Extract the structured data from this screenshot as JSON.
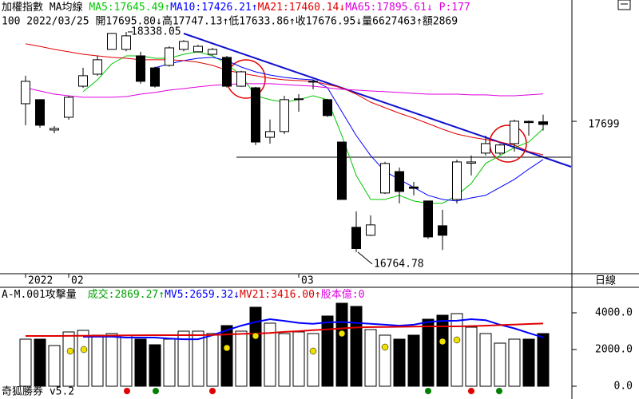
{
  "chart_data": [
    {
      "type": "candlestick",
      "title": "加權指數 MA均線",
      "subtitle": "100 2022/03/25 開17695.80↓高17747.13↑低17633.86↑收17676.95↓量6627463↑額2869",
      "extra_label": "P:177",
      "categories": [
        "2022",
        null,
        null,
        "02",
        null,
        null,
        null,
        null,
        null,
        null,
        null,
        null,
        null,
        null,
        null,
        null,
        null,
        null,
        null,
        "03",
        null,
        null,
        null,
        null,
        null,
        null,
        null,
        null,
        null,
        null,
        null,
        null,
        null,
        null,
        null,
        null,
        null
      ],
      "open": [
        17825,
        17854,
        17637,
        17728,
        17950,
        18036,
        18213,
        18213,
        18167,
        18081,
        18099,
        18213,
        18196,
        18178,
        18156,
        17950,
        17939,
        17585,
        17626,
        17855,
        17980,
        17854,
        17551,
        16942,
        16885,
        17187,
        17340,
        17230,
        17130,
        16953,
        17141,
        17400,
        17472,
        17472,
        17540,
        17699,
        17695.8
      ],
      "high": [
        18025,
        17854,
        17665,
        17882,
        18082,
        18167,
        18330,
        18338.05,
        18196,
        18090,
        18235,
        18280,
        18245,
        18224,
        18167,
        18060,
        17945,
        17712,
        17882,
        17893,
        17996,
        17860,
        17551,
        17056,
        17027,
        17410,
        17369,
        17266,
        17130,
        17067,
        17426,
        17455,
        17597,
        17540,
        17711,
        17705,
        17747.13
      ],
      "low": [
        17671,
        17654,
        17614,
        17711,
        17939,
        18025,
        18213,
        18200,
        17968,
        17940,
        18090,
        18200,
        18190,
        18170,
        17940,
        17945,
        17529,
        17540,
        17608,
        17768,
        17928,
        17730,
        17141,
        16764.78,
        16879,
        17180,
        17113,
        17170,
        16860,
        16780,
        17113,
        17312,
        17455,
        17460,
        17483,
        17597,
        17633.86
      ],
      "close": [
        17985,
        17671,
        17648,
        17871,
        18025,
        18139,
        18327,
        18310,
        17985,
        17950,
        18224,
        18270,
        18235,
        18213,
        17950,
        18053,
        17551,
        17626,
        17854,
        17860,
        17985,
        17740,
        17141,
        16790,
        16959,
        17398,
        17198,
        17220,
        16873,
        16885,
        17409,
        17409,
        17540,
        17530,
        17700,
        17690,
        17676.95
      ],
      "series": [
        {
          "name": "MA5:17645.49↑",
          "color": "#00c800",
          "values": [
            null,
            null,
            null,
            null,
            17911,
            17996,
            18110,
            18167,
            18167,
            18150,
            18150,
            18178,
            18196,
            18167,
            18110,
            18025,
            17882,
            17854,
            17836,
            17854,
            17882,
            17854,
            17597,
            17312,
            17141,
            17141,
            17170,
            17130,
            17113,
            17113,
            17170,
            17255,
            17398,
            17455,
            17512,
            17551,
            17645.49
          ]
        },
        {
          "name": "MA10:17426.21↑",
          "color": "#0000ff",
          "values": [
            null,
            null,
            null,
            null,
            null,
            null,
            null,
            null,
            null,
            18082,
            18110,
            18133,
            18150,
            18156,
            18133,
            18087,
            18053,
            18030,
            18013,
            18002,
            17996,
            17939,
            17768,
            17597,
            17455,
            17341,
            17284,
            17227,
            17170,
            17141,
            17130,
            17152,
            17170,
            17227,
            17284,
            17358,
            17426.21
          ]
        },
        {
          "name": "MA21:17460.14↓",
          "color": "#e00000",
          "values": [
            18253,
            18235,
            18213,
            18196,
            18178,
            18167,
            18156,
            18150,
            18139,
            18139,
            18139,
            18133,
            18121,
            18099,
            18064,
            18042,
            18025,
            18007,
            17996,
            17990,
            17985,
            17962,
            17939,
            17893,
            17836,
            17796,
            17757,
            17722,
            17683,
            17643,
            17608,
            17586,
            17569,
            17551,
            17529,
            17483,
            17460.14
          ]
        },
        {
          "name": "MA65:17895.61↓",
          "color": "#e000e0",
          "values": [
            17939,
            17916,
            17893,
            17882,
            17871,
            17871,
            17871,
            17876,
            17893,
            17905,
            17922,
            17933,
            17945,
            17956,
            17962,
            17968,
            17968,
            17968,
            17962,
            17956,
            17950,
            17939,
            17928,
            17922,
            17916,
            17911,
            17905,
            17899,
            17893,
            17893,
            17893,
            17888,
            17888,
            17882,
            17882,
            17888,
            17895.61
          ]
        }
      ],
      "ylim": [
        16616,
        18566
      ],
      "yticks": [
        17699
      ]
    },
    {
      "type": "bar",
      "title": "A-M.001攻擊量",
      "volume_label": "成交:2869.27↑",
      "volume_label_color": "#00a000",
      "extra_label": "股本億:0",
      "values": [
        2565,
        2565,
        2217,
        2957,
        3043,
        2783,
        2870,
        2783,
        2565,
        2261,
        2565,
        3000,
        3000,
        2870,
        3304,
        3000,
        4304,
        3435,
        2870,
        2957,
        2870,
        3826,
        4522,
        4348,
        3087,
        2783,
        2565,
        2783,
        3652,
        3870,
        3957,
        3217,
        2870,
        2348,
        2565,
        2565,
        2869.27
      ],
      "series": [
        {
          "name": "MV5:2659.32↓",
          "color": "#0000ff",
          "values": [
            null,
            null,
            null,
            null,
            2696,
            2700,
            2700,
            2650,
            2650,
            2650,
            2600,
            2560,
            2560,
            2780,
            3050,
            3300,
            3500,
            3650,
            3560,
            3450,
            3400,
            3480,
            3500,
            3450,
            3400,
            3350,
            3300,
            3350,
            3500,
            3560,
            3570,
            3650,
            3600,
            3350,
            3150,
            2900,
            2659.32
          ]
        },
        {
          "name": "MV21:3416.00↑",
          "color": "#e00000",
          "values": [
            2739,
            2739,
            2739,
            2745,
            2750,
            2755,
            2760,
            2770,
            2780,
            2783,
            2783,
            2783,
            2783,
            2790,
            2820,
            2850,
            2870,
            2900,
            2960,
            3000,
            3050,
            3100,
            3150,
            3200,
            3220,
            3230,
            3240,
            3250,
            3260,
            3260,
            3260,
            3280,
            3300,
            3330,
            3360,
            3390,
            3416
          ]
        }
      ],
      "ylim": [
        0,
        4913
      ],
      "yticks": [
        {
          "value": 4000,
          "label": "4000.0"
        },
        {
          "value": 2000,
          "label": "2000.0"
        },
        {
          "value": 0,
          "label": "0.0"
        }
      ]
    }
  ],
  "period_label": "日線",
  "footer": "奇狐勝券 v5.2"
}
